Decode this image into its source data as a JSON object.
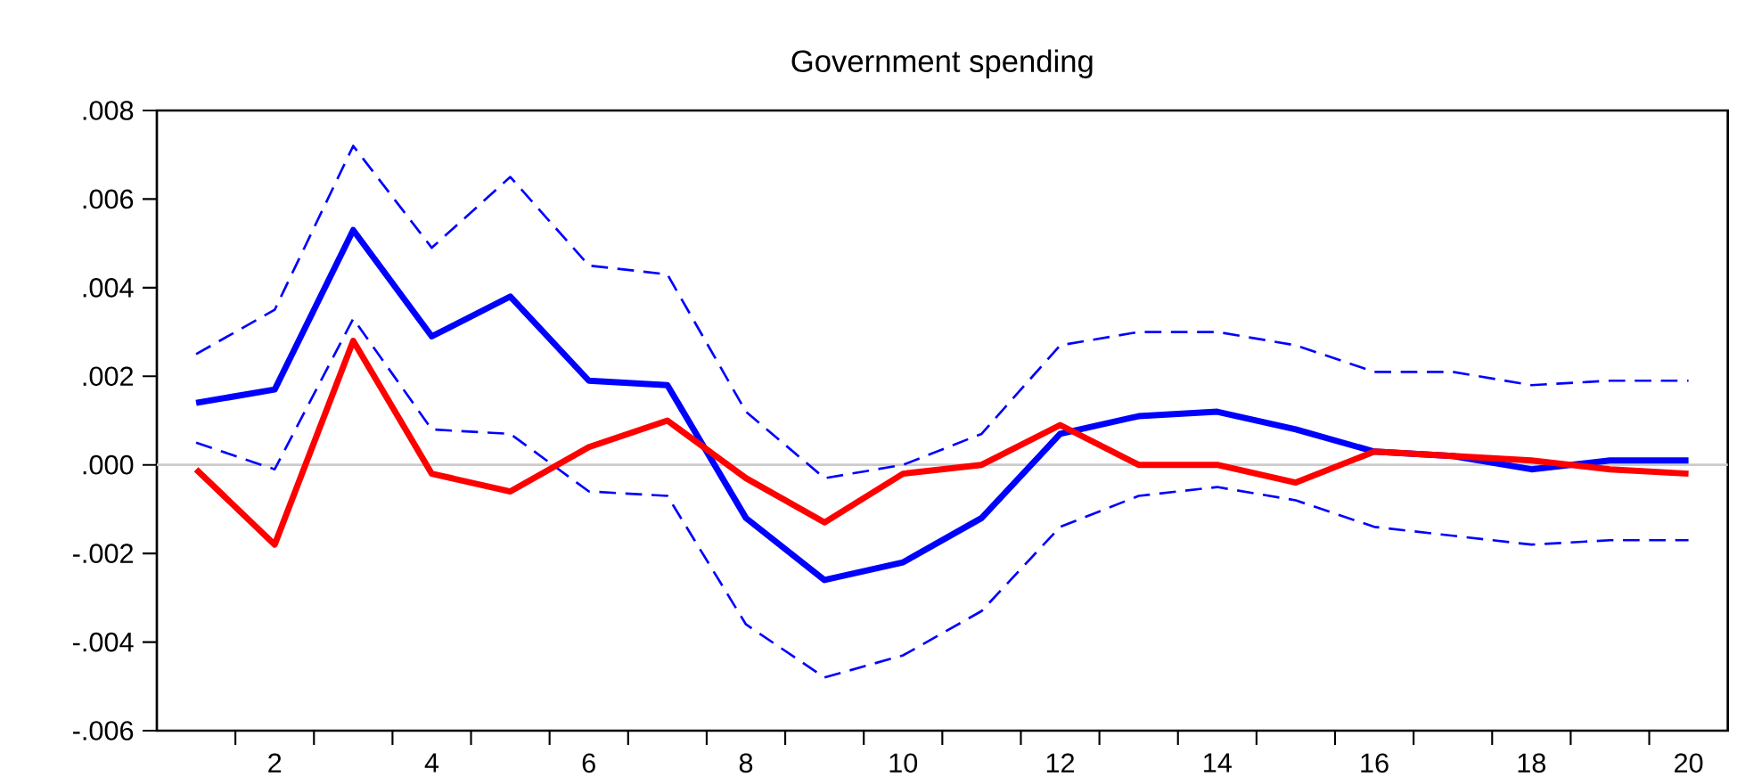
{
  "chart_data": {
    "type": "line",
    "title": "Government spending",
    "x": [
      1,
      2,
      3,
      4,
      5,
      6,
      7,
      8,
      9,
      10,
      11,
      12,
      13,
      14,
      15,
      16,
      17,
      18,
      19,
      20
    ],
    "xlim": [
      0.5,
      20.5
    ],
    "xticks": [
      {
        "value": 1.5,
        "label": null
      },
      {
        "value": 2,
        "label": "2"
      },
      {
        "value": 2.5,
        "label": null
      },
      {
        "value": 3.5,
        "label": null
      },
      {
        "value": 4,
        "label": "4"
      },
      {
        "value": 4.5,
        "label": null
      },
      {
        "value": 5.5,
        "label": null
      },
      {
        "value": 6,
        "label": "6"
      },
      {
        "value": 6.5,
        "label": null
      },
      {
        "value": 7.5,
        "label": null
      },
      {
        "value": 8,
        "label": "8"
      },
      {
        "value": 8.5,
        "label": null
      },
      {
        "value": 9.5,
        "label": null
      },
      {
        "value": 10,
        "label": "10"
      },
      {
        "value": 10.5,
        "label": null
      },
      {
        "value": 11.5,
        "label": null
      },
      {
        "value": 12,
        "label": "12"
      },
      {
        "value": 12.5,
        "label": null
      },
      {
        "value": 13.5,
        "label": null
      },
      {
        "value": 14,
        "label": "14"
      },
      {
        "value": 14.5,
        "label": null
      },
      {
        "value": 15.5,
        "label": null
      },
      {
        "value": 16,
        "label": "16"
      },
      {
        "value": 16.5,
        "label": null
      },
      {
        "value": 17.5,
        "label": null
      },
      {
        "value": 18,
        "label": "18"
      },
      {
        "value": 18.5,
        "label": null
      },
      {
        "value": 19.5,
        "label": null
      },
      {
        "value": 20,
        "label": "20"
      }
    ],
    "ylim": [
      -0.006,
      0.008
    ],
    "yticks": [
      {
        "value": -0.006,
        "label": "-.006"
      },
      {
        "value": -0.004,
        "label": "-.004"
      },
      {
        "value": -0.002,
        "label": "-.002"
      },
      {
        "value": 0,
        "label": ".000"
      },
      {
        "value": 0.002,
        "label": ".002"
      },
      {
        "value": 0.004,
        "label": ".004"
      },
      {
        "value": 0.006,
        "label": ".006"
      },
      {
        "value": 0.008,
        "label": ".008"
      }
    ],
    "grid": false,
    "marker": "none",
    "ref_lines": [
      {
        "axis": "y",
        "value": 0,
        "color": "#cccccc"
      }
    ],
    "series": [
      {
        "color": "#0000ff",
        "line_style": "dashed",
        "values": [
          0.0025,
          0.0035,
          0.0072,
          0.0049,
          0.0065,
          0.0045,
          0.0043,
          0.0012,
          -0.0003,
          0,
          0.0007,
          0.0027,
          0.003,
          0.003,
          0.0027,
          0.0021,
          0.0021,
          0.0018,
          0.0019,
          0.0019
        ]
      },
      {
        "color": "#0000ff",
        "line_style": "dashed",
        "values": [
          0.0005,
          -0.0001,
          0.0033,
          0.0008,
          0.0007,
          -0.0006,
          -0.0007,
          -0.0036,
          -0.0048,
          -0.0043,
          -0.0033,
          -0.0014,
          -0.0007,
          -0.0005,
          -0.0008,
          -0.0014,
          -0.0016,
          -0.0018,
          -0.0017,
          -0.0017
        ]
      },
      {
        "color": "#0000ff",
        "line_style": "solid",
        "values": [
          0.0014,
          0.0017,
          0.0053,
          0.0029,
          0.0038,
          0.0019,
          0.0018,
          -0.0012,
          -0.0026,
          -0.0022,
          -0.0012,
          0.0007,
          0.0011,
          0.0012,
          0.0008,
          0.0003,
          0.0002,
          -0.0001,
          0.0001,
          0.0001
        ]
      },
      {
        "color": "#ff0000",
        "line_style": "solid",
        "values": [
          -0.0001,
          -0.0018,
          0.0028,
          -0.0002,
          -0.0006,
          0.0004,
          0.001,
          -0.0003,
          -0.0013,
          -0.0002,
          0,
          0.0009,
          0,
          0,
          -0.0004,
          0.0003,
          0.0002,
          0.0001,
          -0.0001,
          -0.0002
        ]
      }
    ]
  }
}
